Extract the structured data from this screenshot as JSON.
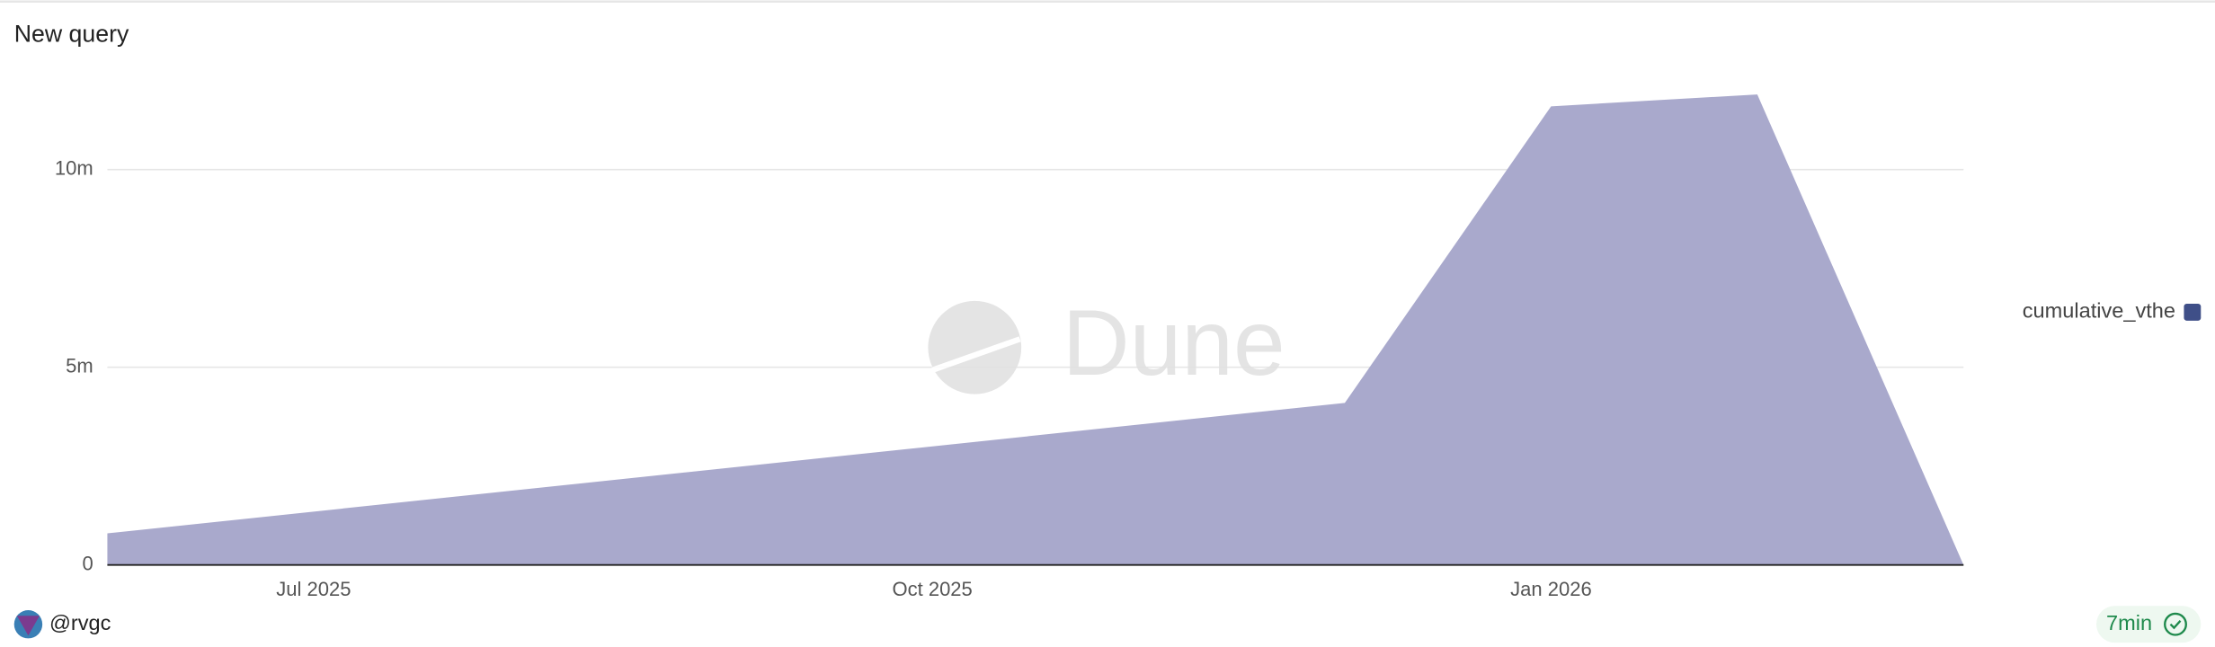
{
  "chart_data": {
    "type": "area",
    "title": "New query",
    "x": [
      "2025-06",
      "2025-12",
      "2026-01",
      "2026-02",
      "2026-03"
    ],
    "series": [
      {
        "name": "cumulative_vthe",
        "color": "#a9a9cc",
        "legend_color": "#3f4f88",
        "values": [
          800000,
          4100000,
          11600000,
          11900000,
          0
        ]
      }
    ],
    "xlim": [
      "2025-06",
      "2026-03"
    ],
    "xticks": [
      {
        "value": "2025-07",
        "label": "Jul 2025"
      },
      {
        "value": "2025-10",
        "label": "Oct 2025"
      },
      {
        "value": "2026-01",
        "label": "Jan 2026"
      }
    ],
    "ylim": [
      0,
      12500000
    ],
    "yticks": [
      0,
      {
        "value": 5000000,
        "label": "5m"
      },
      {
        "value": 10000000,
        "label": "10m"
      }
    ],
    "grid": true,
    "legend": "right"
  },
  "watermark": "Dune",
  "footer": {
    "author": "@rvgc",
    "age": "7min"
  }
}
